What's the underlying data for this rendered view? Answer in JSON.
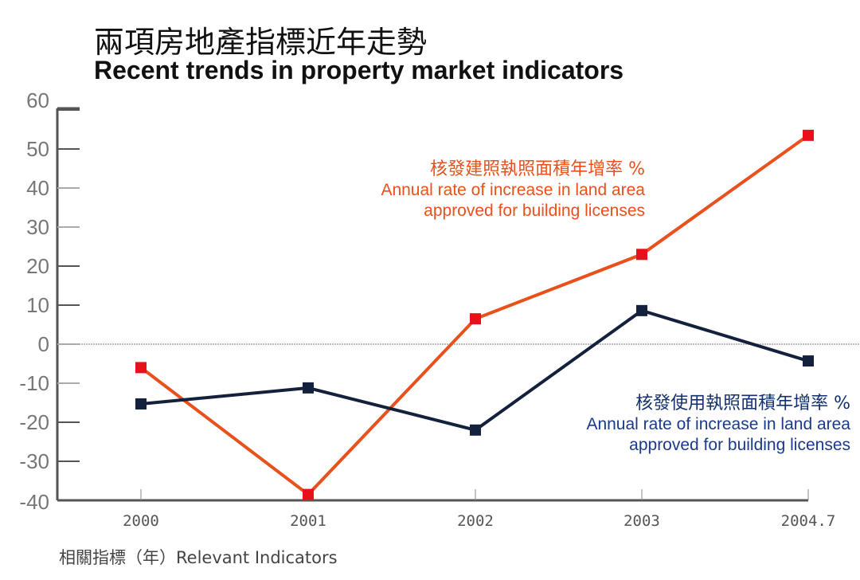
{
  "chart_data": {
    "type": "line",
    "title": "兩項房地產指標近年走勢",
    "subtitle": "Recent trends in property market indicators",
    "xlabel": "相關指標（年）Relevant Indicators",
    "ylabel": "",
    "categories": [
      "2000",
      "2001",
      "2002",
      "2003",
      "2004.7"
    ],
    "ylim": [
      -40,
      60
    ],
    "yticks": [
      "60",
      "50",
      "40",
      "30",
      "20",
      "10",
      "0",
      "-10",
      "-20",
      "-30",
      "-40"
    ],
    "series": [
      {
        "name": "核發建照執照面積年增率 %",
        "name_en_1": "Annual rate of increase in land area",
        "name_en_2": "approved for building licenses",
        "color": "#e8501c",
        "marker": "#e8101a",
        "values": [
          -6,
          -38.5,
          6.5,
          23,
          53.5
        ]
      },
      {
        "name": "核發使用執照面積年增率 %",
        "name_en_1": "Annual rate of increase in land area",
        "name_en_2": "approved for building licenses",
        "color": "#14213d",
        "marker": "#14213d",
        "values": [
          -15.3,
          -11.2,
          -22,
          8.6,
          -4.3
        ]
      }
    ]
  }
}
